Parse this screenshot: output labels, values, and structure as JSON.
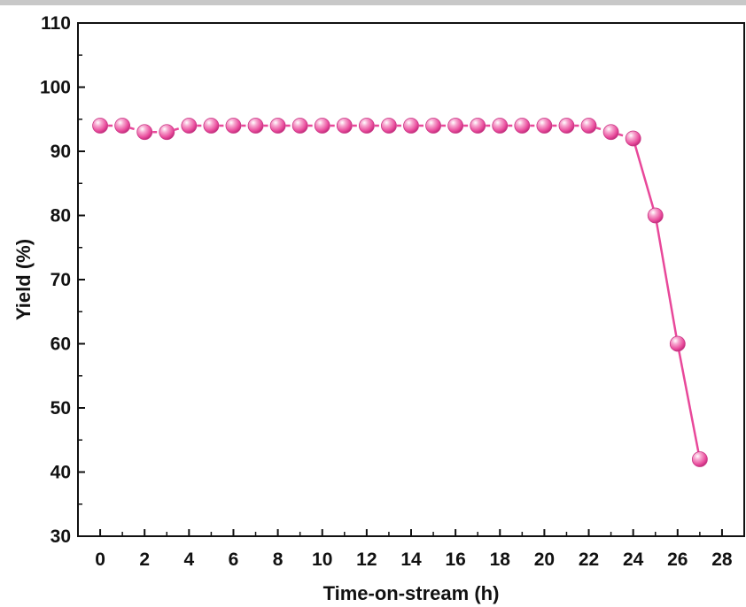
{
  "chart_data": {
    "type": "line",
    "title": "",
    "xlabel": "Time-on-stream (h)",
    "ylabel": "Yield (%)",
    "xlim": [
      -1,
      29
    ],
    "ylim": [
      30,
      110
    ],
    "x_ticks": [
      0,
      2,
      4,
      6,
      8,
      10,
      12,
      14,
      16,
      18,
      20,
      22,
      24,
      26,
      28
    ],
    "y_ticks": [
      30,
      40,
      50,
      60,
      70,
      80,
      90,
      100,
      110
    ],
    "grid": false,
    "legend": "none",
    "series": [
      {
        "x": [
          0,
          1,
          2,
          3,
          4,
          5,
          6,
          7,
          8,
          9,
          10,
          11,
          12,
          13,
          14,
          15,
          16,
          17,
          18,
          19,
          20,
          21,
          22,
          23,
          24,
          25,
          26,
          27
        ],
        "y": [
          94,
          94,
          93,
          93,
          94,
          94,
          94,
          94,
          94,
          94,
          94,
          94,
          94,
          94,
          94,
          94,
          94,
          94,
          94,
          94,
          94,
          94,
          94,
          93,
          92,
          80,
          60,
          42
        ],
        "color": "#e8489a"
      }
    ]
  }
}
